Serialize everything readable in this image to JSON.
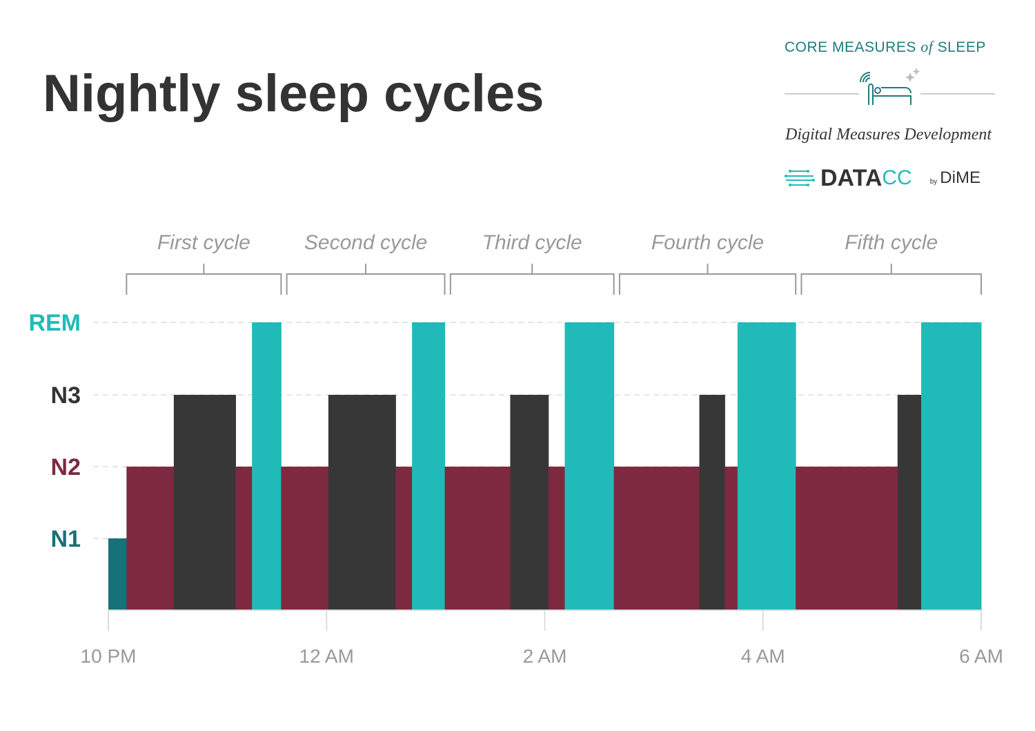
{
  "title": "Nightly sleep cycles",
  "brand": {
    "line1_a": "CORE MEASURES ",
    "line1_of": "of",
    "line1_b": "SLEEP",
    "subtitle": "Digital Measures Development",
    "datacc_a": "DATA",
    "datacc_b": "CC",
    "by": "by",
    "dime": "DiME"
  },
  "chart_data": {
    "type": "step-area",
    "title": "Nightly sleep cycles",
    "y_levels": [
      "N1",
      "N2",
      "N3",
      "REM"
    ],
    "level_colors": {
      "N1": "#177178",
      "N2": "#7d293f",
      "N3": "#373737",
      "REM": "#20bbb8"
    },
    "level_label_colors": {
      "N1": "#177178",
      "N2": "#7d293f",
      "N3": "#333333",
      "REM": "#20bbb8"
    },
    "x_ticks": [
      "10 PM",
      "12 AM",
      "2 AM",
      "4 AM",
      "6 AM"
    ],
    "x_range_minutes_after_10pm": [
      0,
      480
    ],
    "segments": [
      {
        "stage": "N1",
        "start": 0,
        "end": 10
      },
      {
        "stage": "N2",
        "start": 10,
        "end": 36
      },
      {
        "stage": "N3",
        "start": 36,
        "end": 70
      },
      {
        "stage": "N2",
        "start": 70,
        "end": 79
      },
      {
        "stage": "REM",
        "start": 79,
        "end": 95
      },
      {
        "stage": "N2",
        "start": 95,
        "end": 121
      },
      {
        "stage": "N3",
        "start": 121,
        "end": 158
      },
      {
        "stage": "N2",
        "start": 158,
        "end": 167
      },
      {
        "stage": "REM",
        "start": 167,
        "end": 185
      },
      {
        "stage": "N2",
        "start": 185,
        "end": 221
      },
      {
        "stage": "N3",
        "start": 221,
        "end": 242
      },
      {
        "stage": "N2",
        "start": 242,
        "end": 251
      },
      {
        "stage": "REM",
        "start": 251,
        "end": 278
      },
      {
        "stage": "N2",
        "start": 278,
        "end": 325
      },
      {
        "stage": "N3",
        "start": 325,
        "end": 339
      },
      {
        "stage": "N2",
        "start": 339,
        "end": 346
      },
      {
        "stage": "REM",
        "start": 346,
        "end": 378
      },
      {
        "stage": "N2",
        "start": 378,
        "end": 434
      },
      {
        "stage": "N3",
        "start": 434,
        "end": 447
      },
      {
        "stage": "REM",
        "start": 447,
        "end": 480
      }
    ],
    "cycles": [
      {
        "label": "First cycle",
        "start": 10,
        "end": 95
      },
      {
        "label": "Second cycle",
        "start": 97,
        "end": 185
      },
      {
        "label": "Third cycle",
        "start": 187,
        "end": 278
      },
      {
        "label": "Fourth cycle",
        "start": 280,
        "end": 378
      },
      {
        "label": "Fifth cycle",
        "start": 380,
        "end": 480
      }
    ],
    "grid": "dashed horizontal at stage levels"
  }
}
